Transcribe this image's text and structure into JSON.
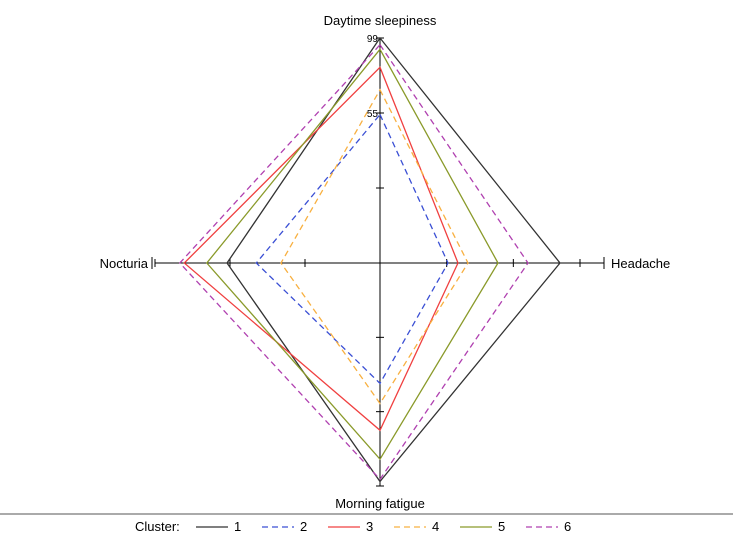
{
  "chart_data": {
    "type": "radar",
    "axes": [
      "Daytime sleepiness",
      "Headache",
      "Morning fatigue",
      "Nocturia"
    ],
    "scale_tick_labels": [
      "99",
      "55"
    ],
    "legend_title": "Cluster:",
    "series": [
      {
        "name": "1",
        "color": "#333333",
        "dash": "solid",
        "values": [
          1.0,
          0.9,
          0.98,
          0.68
        ]
      },
      {
        "name": "2",
        "color": "#3a4fd4",
        "dash": "dashed",
        "values": [
          0.66,
          0.34,
          0.54,
          0.55
        ]
      },
      {
        "name": "3",
        "color": "#f04040",
        "dash": "solid",
        "values": [
          0.87,
          0.39,
          0.75,
          0.87
        ]
      },
      {
        "name": "4",
        "color": "#f8b040",
        "dash": "dashed",
        "values": [
          0.77,
          0.44,
          0.63,
          0.44
        ]
      },
      {
        "name": "5",
        "color": "#8a9a2a",
        "dash": "solid",
        "values": [
          0.95,
          0.59,
          0.88,
          0.77
        ]
      },
      {
        "name": "6",
        "color": "#b040b0",
        "dash": "dashed",
        "values": [
          0.97,
          0.74,
          0.97,
          0.89
        ]
      }
    ]
  }
}
